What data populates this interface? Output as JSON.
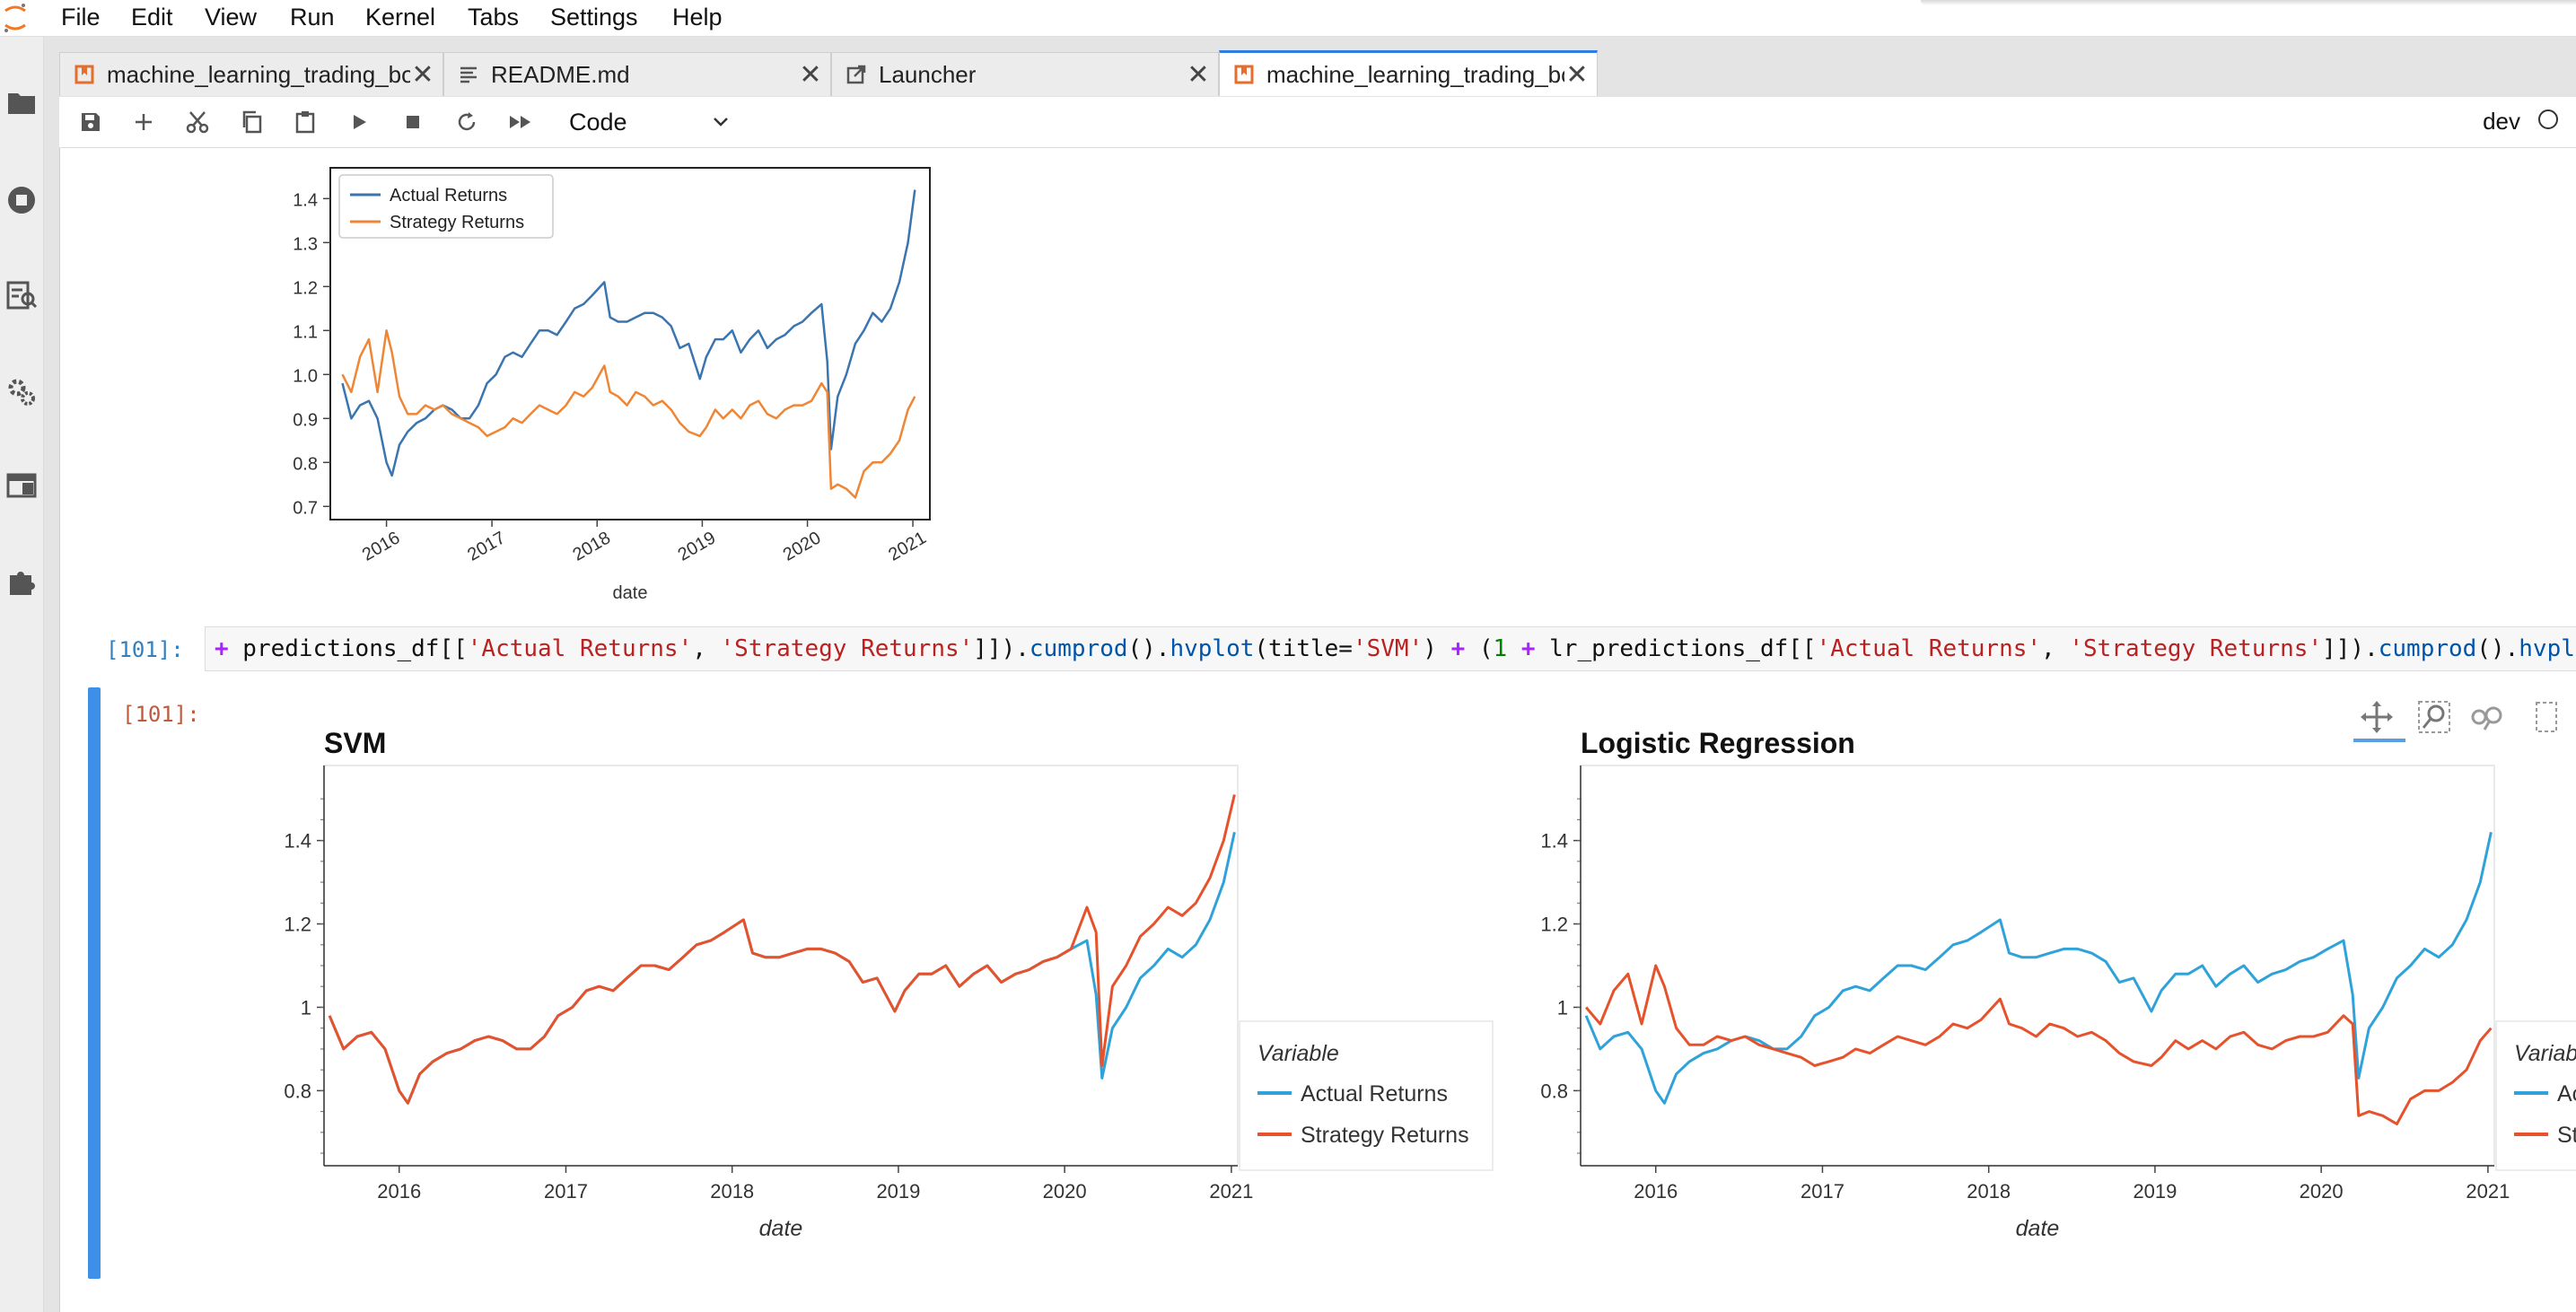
{
  "menu": [
    "File",
    "Edit",
    "View",
    "Run",
    "Kernel",
    "Tabs",
    "Settings",
    "Help"
  ],
  "tabs": [
    {
      "label": "machine_learning_trading_bot.ipynb",
      "icon": "notebook-icon",
      "active": false
    },
    {
      "label": "README.md",
      "icon": "markdown-file-icon",
      "active": false
    },
    {
      "label": "Launcher",
      "icon": "launcher-icon",
      "active": false
    },
    {
      "label": "machine_learning_trading_bot.ipynb",
      "icon": "notebook-icon",
      "active": true
    }
  ],
  "toolbar": {
    "buttons": [
      "save-icon",
      "add-cell-icon",
      "cut-icon",
      "copy-icon",
      "paste-icon",
      "run-icon",
      "stop-icon",
      "restart-icon",
      "fast-forward-icon"
    ],
    "cell_type": "Code",
    "kernel_name": "dev"
  },
  "cells": {
    "in_prompt": "[101]:",
    "out_prompt": "[101]:",
    "code": "+ predictions_df[['Actual Returns', 'Strategy Returns']]).cumprod().hvplot(title='SVM') + (1 + lr_predictions_df[['Actual Returns', 'Strategy Returns']]).cumprod().hvplot(title='Logistic Regression')"
  },
  "colors": {
    "mpl_actual": "#3a75b0",
    "mpl_strategy": "#ef8636",
    "hv_actual": "#30a2da",
    "hv_strategy": "#e5522b",
    "accent": "#3d8fe8"
  },
  "chart_data": [
    {
      "type": "line",
      "library": "matplotlib",
      "title": "",
      "xlabel": "date",
      "ylabel": "",
      "xlim": [
        "2015-06-20",
        "2021-03-01"
      ],
      "ylim": [
        0.67,
        1.47
      ],
      "yticks": [
        0.7,
        0.8,
        0.9,
        1.0,
        1.1,
        1.2,
        1.3,
        1.4
      ],
      "xticks": [
        "2016",
        "2017",
        "2018",
        "2019",
        "2020",
        "2021"
      ],
      "legend_placement": "upper-left",
      "grid": false,
      "x": [
        "2015-08-01",
        "2015-09-01",
        "2015-10-01",
        "2015-11-01",
        "2015-12-01",
        "2016-01-01",
        "2016-01-20",
        "2016-02-15",
        "2016-03-15",
        "2016-04-15",
        "2016-05-15",
        "2016-06-15",
        "2016-07-15",
        "2016-08-15",
        "2016-09-15",
        "2016-10-15",
        "2016-11-15",
        "2016-12-15",
        "2017-01-15",
        "2017-02-15",
        "2017-03-15",
        "2017-04-15",
        "2017-05-15",
        "2017-06-15",
        "2017-07-15",
        "2017-08-15",
        "2017-09-15",
        "2017-10-15",
        "2017-11-15",
        "2017-12-15",
        "2018-01-26",
        "2018-02-15",
        "2018-03-15",
        "2018-04-15",
        "2018-05-15",
        "2018-06-15",
        "2018-07-15",
        "2018-08-15",
        "2018-09-15",
        "2018-10-15",
        "2018-11-15",
        "2018-12-24",
        "2019-01-15",
        "2019-02-15",
        "2019-03-15",
        "2019-04-15",
        "2019-05-15",
        "2019-06-15",
        "2019-07-15",
        "2019-08-15",
        "2019-09-15",
        "2019-10-15",
        "2019-11-15",
        "2019-12-15",
        "2020-01-15",
        "2020-02-19",
        "2020-03-10",
        "2020-03-23",
        "2020-04-15",
        "2020-05-15",
        "2020-06-15",
        "2020-07-15",
        "2020-08-15",
        "2020-09-15",
        "2020-10-15",
        "2020-11-15",
        "2020-12-15",
        "2021-01-08"
      ],
      "series": [
        {
          "name": "Actual Returns",
          "values": [
            0.98,
            0.9,
            0.93,
            0.94,
            0.9,
            0.8,
            0.77,
            0.84,
            0.87,
            0.89,
            0.9,
            0.92,
            0.93,
            0.92,
            0.9,
            0.9,
            0.93,
            0.98,
            1.0,
            1.04,
            1.05,
            1.04,
            1.07,
            1.1,
            1.1,
            1.09,
            1.12,
            1.15,
            1.16,
            1.18,
            1.21,
            1.13,
            1.12,
            1.12,
            1.13,
            1.14,
            1.14,
            1.13,
            1.11,
            1.06,
            1.07,
            0.99,
            1.04,
            1.08,
            1.08,
            1.1,
            1.05,
            1.08,
            1.1,
            1.06,
            1.08,
            1.09,
            1.11,
            1.12,
            1.14,
            1.16,
            1.03,
            0.83,
            0.95,
            1.0,
            1.07,
            1.1,
            1.14,
            1.12,
            1.15,
            1.21,
            1.3,
            1.42
          ]
        },
        {
          "name": "Strategy Returns",
          "values": [
            1.0,
            0.96,
            1.04,
            1.08,
            0.96,
            1.1,
            1.05,
            0.95,
            0.91,
            0.91,
            0.93,
            0.92,
            0.93,
            0.91,
            0.9,
            0.89,
            0.88,
            0.86,
            0.87,
            0.88,
            0.9,
            0.89,
            0.91,
            0.93,
            0.92,
            0.91,
            0.93,
            0.96,
            0.95,
            0.97,
            1.02,
            0.96,
            0.95,
            0.93,
            0.96,
            0.95,
            0.93,
            0.94,
            0.92,
            0.89,
            0.87,
            0.86,
            0.88,
            0.92,
            0.9,
            0.92,
            0.9,
            0.93,
            0.94,
            0.91,
            0.9,
            0.92,
            0.93,
            0.93,
            0.94,
            0.98,
            0.96,
            0.74,
            0.75,
            0.74,
            0.72,
            0.78,
            0.8,
            0.8,
            0.82,
            0.85,
            0.92,
            0.95
          ]
        }
      ]
    },
    {
      "type": "line",
      "library": "hvplot",
      "title": "SVM",
      "xlabel": "date",
      "ylabel": "",
      "xlim": [
        "2015-07-20",
        "2021-01-15"
      ],
      "ylim": [
        0.62,
        1.58
      ],
      "yticks": [
        "0.8",
        "1",
        "1.2",
        "1.4"
      ],
      "xticks": [
        "2016",
        "2017",
        "2018",
        "2019",
        "2020",
        "2021"
      ],
      "legend_title": "Variable",
      "legend_placement": "right",
      "x": [
        "2015-08-01",
        "2015-09-01",
        "2015-10-01",
        "2015-11-01",
        "2015-12-01",
        "2016-01-01",
        "2016-01-20",
        "2016-02-15",
        "2016-03-15",
        "2016-04-15",
        "2016-05-15",
        "2016-06-15",
        "2016-07-15",
        "2016-08-15",
        "2016-09-15",
        "2016-10-15",
        "2016-11-15",
        "2016-12-15",
        "2017-01-15",
        "2017-02-15",
        "2017-03-15",
        "2017-04-15",
        "2017-05-15",
        "2017-06-15",
        "2017-07-15",
        "2017-08-15",
        "2017-09-15",
        "2017-10-15",
        "2017-11-15",
        "2017-12-15",
        "2018-01-26",
        "2018-02-15",
        "2018-03-15",
        "2018-04-15",
        "2018-05-15",
        "2018-06-15",
        "2018-07-15",
        "2018-08-15",
        "2018-09-15",
        "2018-10-15",
        "2018-11-15",
        "2018-12-24",
        "2019-01-15",
        "2019-02-15",
        "2019-03-15",
        "2019-04-15",
        "2019-05-15",
        "2019-06-15",
        "2019-07-15",
        "2019-08-15",
        "2019-09-15",
        "2019-10-15",
        "2019-11-15",
        "2019-12-15",
        "2020-01-15",
        "2020-02-19",
        "2020-03-10",
        "2020-03-23",
        "2020-04-15",
        "2020-05-15",
        "2020-06-15",
        "2020-07-15",
        "2020-08-15",
        "2020-09-15",
        "2020-10-15",
        "2020-11-15",
        "2020-12-15",
        "2021-01-08"
      ],
      "series": [
        {
          "name": "Actual Returns",
          "values": [
            0.98,
            0.9,
            0.93,
            0.94,
            0.9,
            0.8,
            0.77,
            0.84,
            0.87,
            0.89,
            0.9,
            0.92,
            0.93,
            0.92,
            0.9,
            0.9,
            0.93,
            0.98,
            1.0,
            1.04,
            1.05,
            1.04,
            1.07,
            1.1,
            1.1,
            1.09,
            1.12,
            1.15,
            1.16,
            1.18,
            1.21,
            1.13,
            1.12,
            1.12,
            1.13,
            1.14,
            1.14,
            1.13,
            1.11,
            1.06,
            1.07,
            0.99,
            1.04,
            1.08,
            1.08,
            1.1,
            1.05,
            1.08,
            1.1,
            1.06,
            1.08,
            1.09,
            1.11,
            1.12,
            1.14,
            1.16,
            1.03,
            0.83,
            0.95,
            1.0,
            1.07,
            1.1,
            1.14,
            1.12,
            1.15,
            1.21,
            1.3,
            1.42
          ]
        },
        {
          "name": "Strategy Returns",
          "values": [
            0.98,
            0.9,
            0.93,
            0.94,
            0.9,
            0.8,
            0.77,
            0.84,
            0.87,
            0.89,
            0.9,
            0.92,
            0.93,
            0.92,
            0.9,
            0.9,
            0.93,
            0.98,
            1.0,
            1.04,
            1.05,
            1.04,
            1.07,
            1.1,
            1.1,
            1.09,
            1.12,
            1.15,
            1.16,
            1.18,
            1.21,
            1.13,
            1.12,
            1.12,
            1.13,
            1.14,
            1.14,
            1.13,
            1.11,
            1.06,
            1.07,
            0.99,
            1.04,
            1.08,
            1.08,
            1.1,
            1.05,
            1.08,
            1.1,
            1.06,
            1.08,
            1.09,
            1.11,
            1.12,
            1.14,
            1.24,
            1.18,
            0.86,
            1.05,
            1.1,
            1.17,
            1.2,
            1.24,
            1.22,
            1.25,
            1.31,
            1.4,
            1.51
          ]
        }
      ]
    },
    {
      "type": "line",
      "library": "hvplot",
      "title": "Logistic Regression",
      "xlabel": "date",
      "ylabel": "",
      "xlim": [
        "2015-07-20",
        "2021-01-15"
      ],
      "ylim": [
        0.62,
        1.58
      ],
      "yticks": [
        "0.8",
        "1",
        "1.2",
        "1.4"
      ],
      "xticks": [
        "2016",
        "2017",
        "2018",
        "2019",
        "2020",
        "2021"
      ],
      "legend_title": "Variable",
      "legend_entries_visible": [
        "Actu",
        "Stra"
      ],
      "legend_placement": "right",
      "x": [
        "2015-08-01",
        "2015-09-01",
        "2015-10-01",
        "2015-11-01",
        "2015-12-01",
        "2016-01-01",
        "2016-01-20",
        "2016-02-15",
        "2016-03-15",
        "2016-04-15",
        "2016-05-15",
        "2016-06-15",
        "2016-07-15",
        "2016-08-15",
        "2016-09-15",
        "2016-10-15",
        "2016-11-15",
        "2016-12-15",
        "2017-01-15",
        "2017-02-15",
        "2017-03-15",
        "2017-04-15",
        "2017-05-15",
        "2017-06-15",
        "2017-07-15",
        "2017-08-15",
        "2017-09-15",
        "2017-10-15",
        "2017-11-15",
        "2017-12-15",
        "2018-01-26",
        "2018-02-15",
        "2018-03-15",
        "2018-04-15",
        "2018-05-15",
        "2018-06-15",
        "2018-07-15",
        "2018-08-15",
        "2018-09-15",
        "2018-10-15",
        "2018-11-15",
        "2018-12-24",
        "2019-01-15",
        "2019-02-15",
        "2019-03-15",
        "2019-04-15",
        "2019-05-15",
        "2019-06-15",
        "2019-07-15",
        "2019-08-15",
        "2019-09-15",
        "2019-10-15",
        "2019-11-15",
        "2019-12-15",
        "2020-01-15",
        "2020-02-19",
        "2020-03-10",
        "2020-03-23",
        "2020-04-15",
        "2020-05-15",
        "2020-06-15",
        "2020-07-15",
        "2020-08-15",
        "2020-09-15",
        "2020-10-15",
        "2020-11-15",
        "2020-12-15",
        "2021-01-08"
      ],
      "series": [
        {
          "name": "Actual Returns",
          "values": [
            0.98,
            0.9,
            0.93,
            0.94,
            0.9,
            0.8,
            0.77,
            0.84,
            0.87,
            0.89,
            0.9,
            0.92,
            0.93,
            0.92,
            0.9,
            0.9,
            0.93,
            0.98,
            1.0,
            1.04,
            1.05,
            1.04,
            1.07,
            1.1,
            1.1,
            1.09,
            1.12,
            1.15,
            1.16,
            1.18,
            1.21,
            1.13,
            1.12,
            1.12,
            1.13,
            1.14,
            1.14,
            1.13,
            1.11,
            1.06,
            1.07,
            0.99,
            1.04,
            1.08,
            1.08,
            1.1,
            1.05,
            1.08,
            1.1,
            1.06,
            1.08,
            1.09,
            1.11,
            1.12,
            1.14,
            1.16,
            1.03,
            0.83,
            0.95,
            1.0,
            1.07,
            1.1,
            1.14,
            1.12,
            1.15,
            1.21,
            1.3,
            1.42
          ]
        },
        {
          "name": "Strategy Returns",
          "values": [
            1.0,
            0.96,
            1.04,
            1.08,
            0.96,
            1.1,
            1.05,
            0.95,
            0.91,
            0.91,
            0.93,
            0.92,
            0.93,
            0.91,
            0.9,
            0.89,
            0.88,
            0.86,
            0.87,
            0.88,
            0.9,
            0.89,
            0.91,
            0.93,
            0.92,
            0.91,
            0.93,
            0.96,
            0.95,
            0.97,
            1.02,
            0.96,
            0.95,
            0.93,
            0.96,
            0.95,
            0.93,
            0.94,
            0.92,
            0.89,
            0.87,
            0.86,
            0.88,
            0.92,
            0.9,
            0.92,
            0.9,
            0.93,
            0.94,
            0.91,
            0.9,
            0.92,
            0.93,
            0.93,
            0.94,
            0.98,
            0.96,
            0.74,
            0.75,
            0.74,
            0.72,
            0.78,
            0.8,
            0.8,
            0.82,
            0.85,
            0.92,
            0.95
          ]
        }
      ]
    }
  ]
}
